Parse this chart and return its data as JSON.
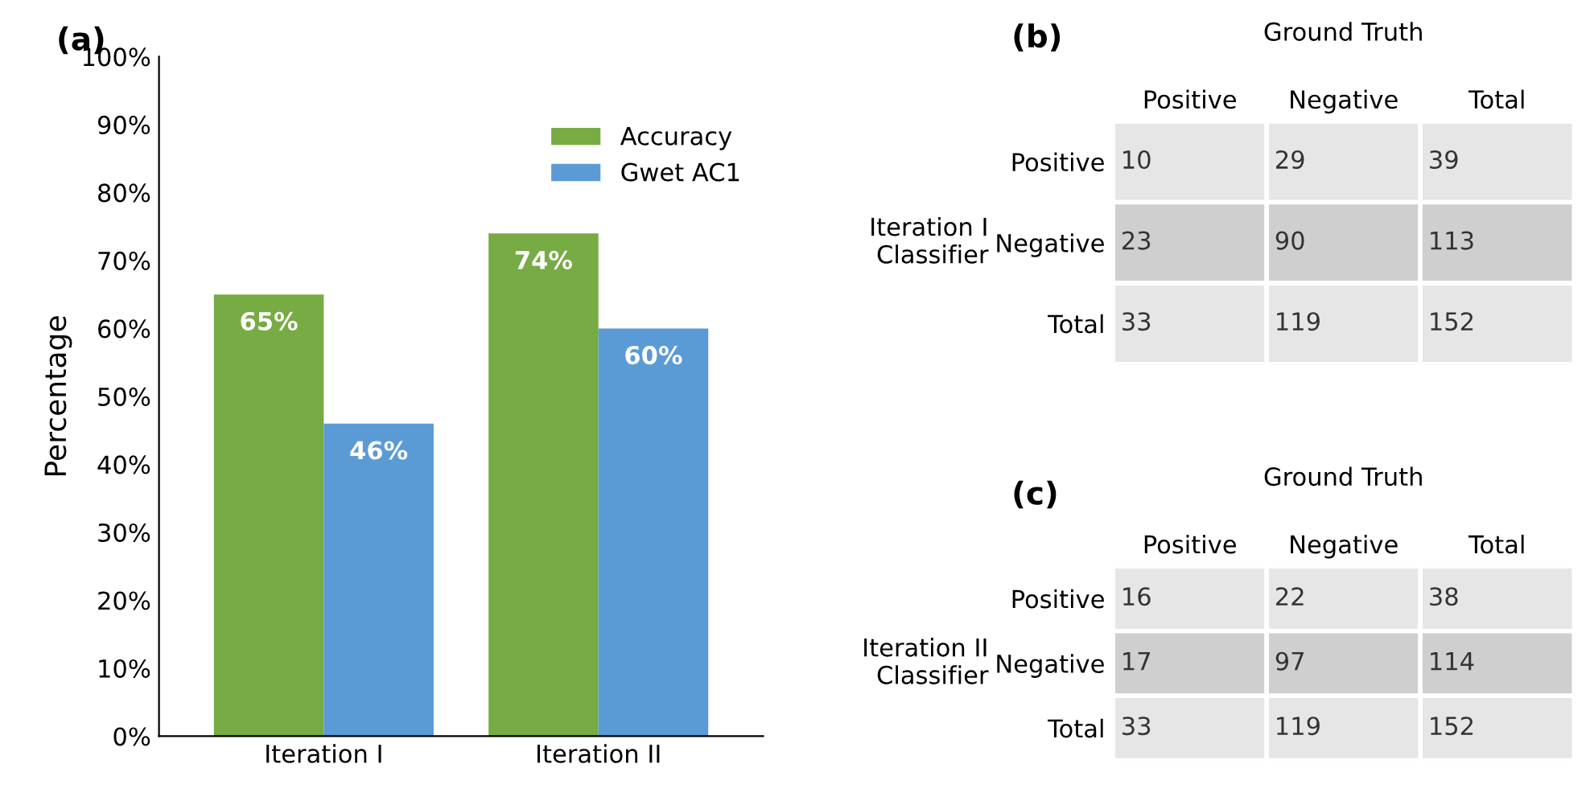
{
  "chart_data": [
    {
      "type": "bar",
      "title": "(a)",
      "ylabel": "Percentage",
      "categories": [
        "Iteration I",
        "Iteration II"
      ],
      "series": [
        {
          "name": "Accuracy",
          "color": "#77ab43",
          "values": [
            65,
            74
          ],
          "value_labels": [
            "65%",
            "74%"
          ]
        },
        {
          "name": "Gwet AC1",
          "color": "#5b9bd5",
          "values": [
            46,
            60
          ],
          "value_labels": [
            "46%",
            "60%"
          ]
        }
      ],
      "ylim": [
        0,
        100
      ],
      "yticks": [
        {
          "value": 0,
          "label": "0%"
        },
        {
          "value": 10,
          "label": "10%"
        },
        {
          "value": 20,
          "label": "20%"
        },
        {
          "value": 30,
          "label": "30%"
        },
        {
          "value": 40,
          "label": "40%"
        },
        {
          "value": 50,
          "label": "50%"
        },
        {
          "value": 60,
          "label": "60%"
        },
        {
          "value": 70,
          "label": "70%"
        },
        {
          "value": 80,
          "label": "80%"
        },
        {
          "value": 90,
          "label": "90%"
        },
        {
          "value": 100,
          "label": "100%"
        }
      ],
      "grid": false,
      "legend": "top right"
    },
    {
      "type": "heatmap",
      "title": "(b)",
      "xlabel": "Ground Truth",
      "ylabel": "Iteration I\nClassifier",
      "categories": [
        "Positive",
        "Negative",
        "Total"
      ],
      "y_categories": [
        "Positive",
        "Negative",
        "Total"
      ],
      "cells": [
        [
          10,
          29,
          39
        ],
        [
          23,
          90,
          113
        ],
        [
          33,
          119,
          152
        ]
      ],
      "colors": [
        [
          "#e6e6e6",
          "#e6e6e6",
          "#e6e6e6"
        ],
        [
          "#cfcfcf",
          "#cfcfcf",
          "#cfcfcf"
        ],
        [
          "#e6e6e6",
          "#e6e6e6",
          "#e6e6e6"
        ]
      ],
      "data_labels": true
    },
    {
      "type": "heatmap",
      "title": "(c)",
      "xlabel": "Ground Truth",
      "ylabel": "Iteration II\nClassifier",
      "categories": [
        "Positive",
        "Negative",
        "Total"
      ],
      "y_categories": [
        "Positive",
        "Negative",
        "Total"
      ],
      "cells": [
        [
          16,
          22,
          38
        ],
        [
          17,
          97,
          114
        ],
        [
          33,
          119,
          152
        ]
      ],
      "colors": [
        [
          "#e6e6e6",
          "#e6e6e6",
          "#e6e6e6"
        ],
        [
          "#cfcfcf",
          "#cfcfcf",
          "#cfcfcf"
        ],
        [
          "#e6e6e6",
          "#e6e6e6",
          "#e6e6e6"
        ]
      ],
      "data_labels": true
    }
  ]
}
